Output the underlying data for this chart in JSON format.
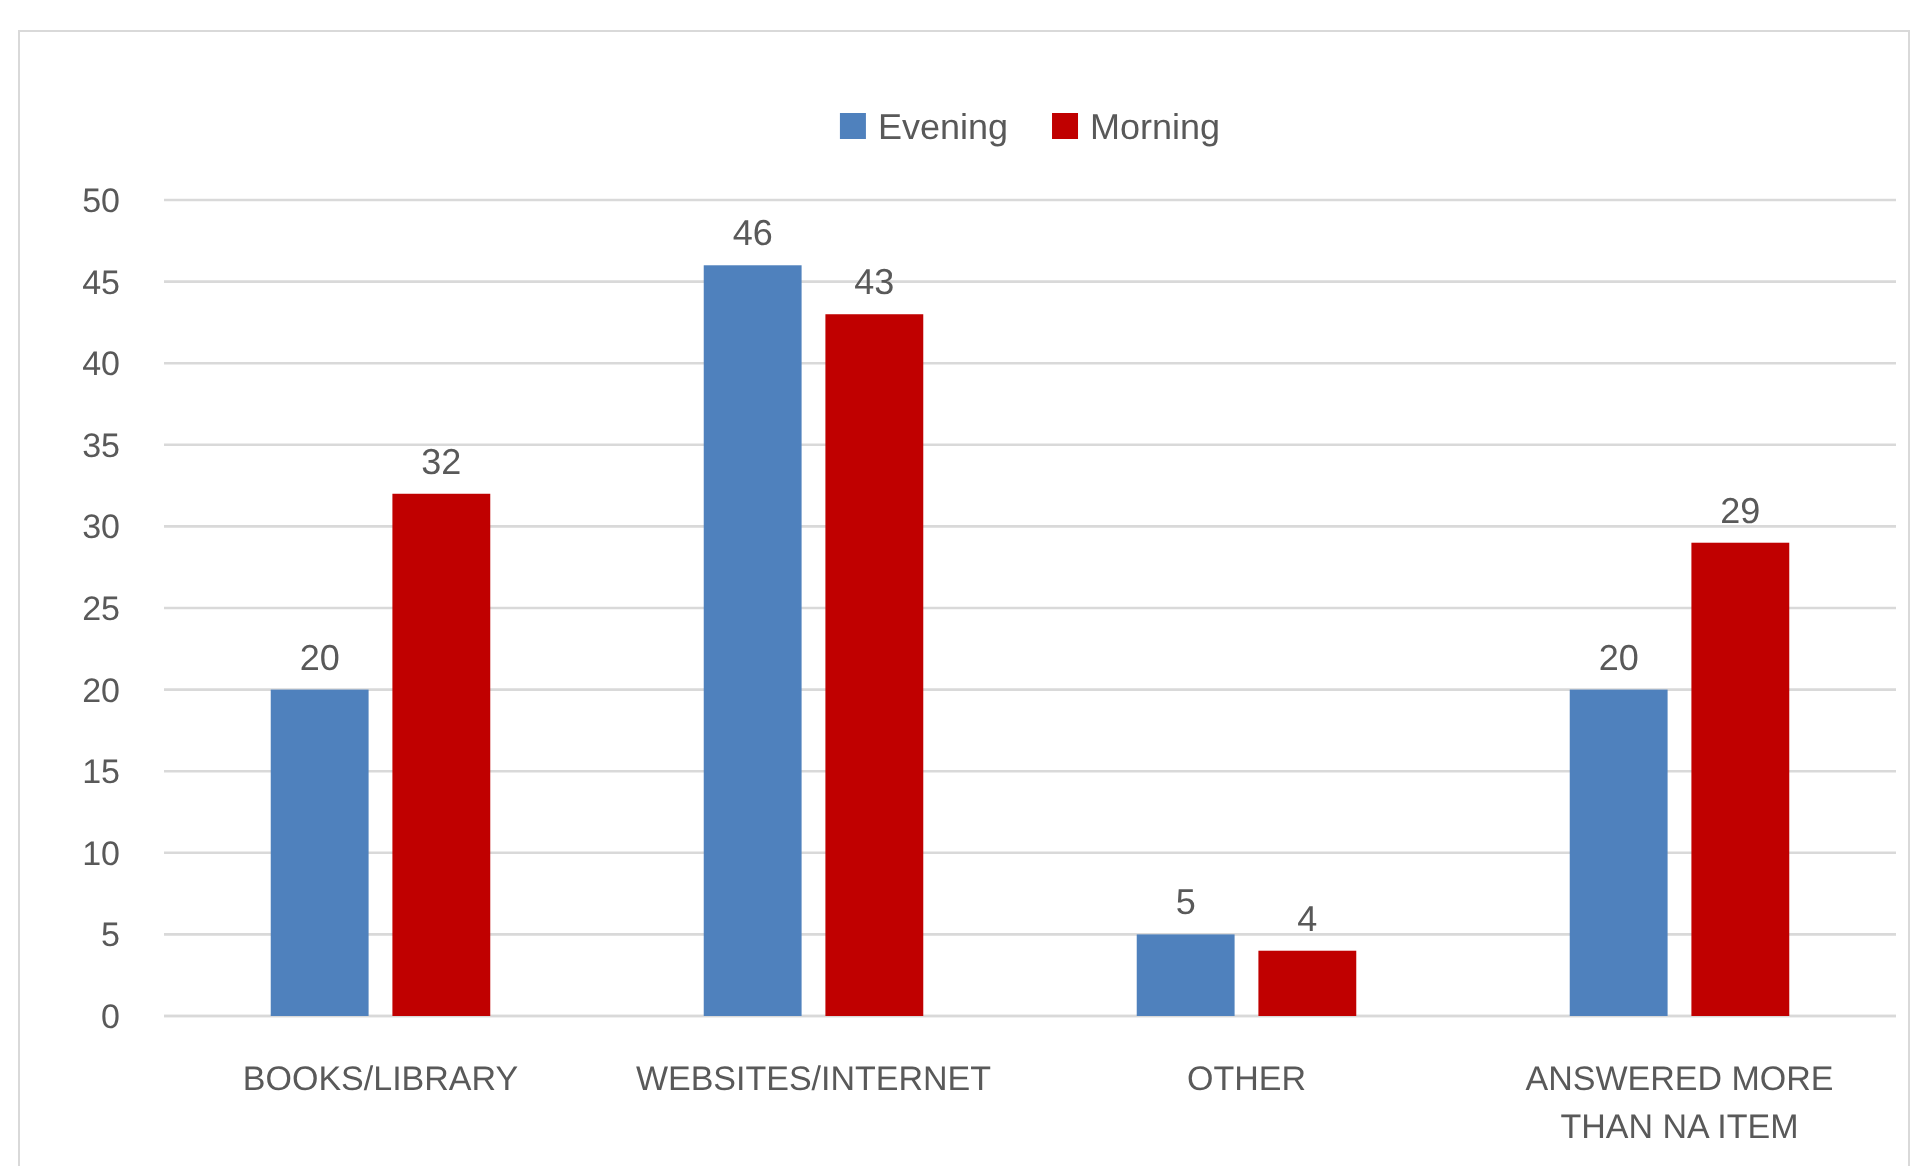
{
  "chart_data": {
    "type": "bar",
    "categories": [
      "BOOKS/LIBRARY",
      "WEBSITES/INTERNET",
      "OTHER",
      "ANSWERED MORE THAN NA ITEM"
    ],
    "series": [
      {
        "name": "Evening",
        "color": "#4f81bd",
        "values": [
          20,
          46,
          5,
          20
        ]
      },
      {
        "name": "Morning",
        "color": "#c00000",
        "values": [
          32,
          43,
          4,
          29
        ]
      }
    ],
    "ylim": [
      0,
      50
    ],
    "yticks": [
      0,
      5,
      10,
      15,
      20,
      25,
      30,
      35,
      40,
      45,
      50
    ],
    "grid": "y",
    "legend": "top",
    "data_labels": true
  }
}
